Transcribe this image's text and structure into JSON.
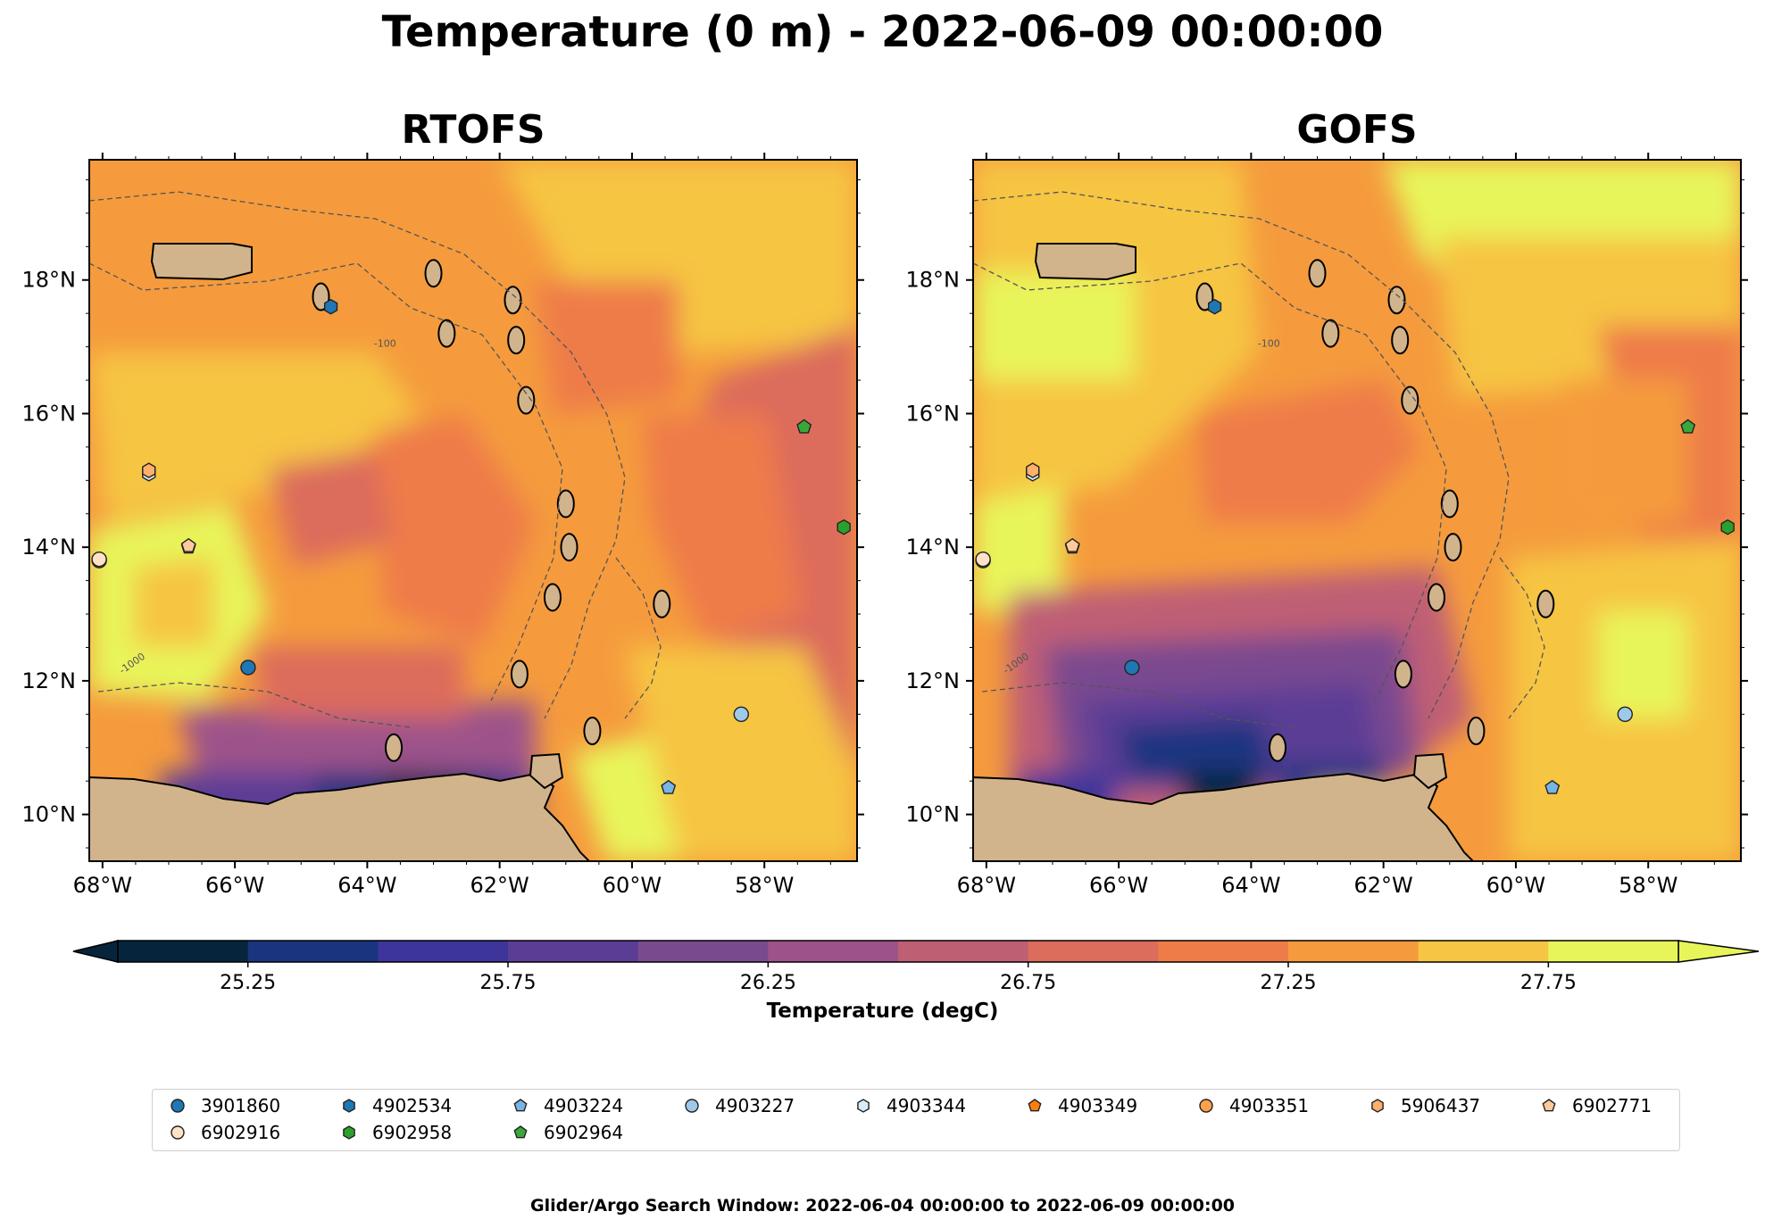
{
  "title": "Temperature (0 m) - 2022-06-09 00:00:00",
  "panels": [
    {
      "title": "RTOFS",
      "variant": "rtofs"
    },
    {
      "title": "GOFS",
      "variant": "gofs"
    }
  ],
  "map": {
    "lon_range": [
      -68.2,
      -56.6
    ],
    "lat_range": [
      9.3,
      19.8
    ],
    "lon_ticks": [
      -68,
      -66,
      -64,
      -62,
      -60,
      -58
    ],
    "lon_tick_labels": [
      "68°W",
      "66°W",
      "64°W",
      "62°W",
      "60°W",
      "58°W"
    ],
    "lat_ticks": [
      10,
      12,
      14,
      16,
      18
    ],
    "lat_tick_labels": [
      "10°N",
      "12°N",
      "14°N",
      "16°N",
      "18°N"
    ],
    "contour_labels": [
      "-1000",
      "-100"
    ]
  },
  "colorbar": {
    "label": "Temperature (degC)",
    "range": [
      25.0,
      28.0
    ],
    "levels": 12,
    "ticks": [
      "25.25",
      "25.75",
      "26.25",
      "26.75",
      "27.25",
      "27.75"
    ],
    "colors": [
      "#06253d",
      "#1a3480",
      "#3d359a",
      "#5b3d96",
      "#7a4a8f",
      "#9d528a",
      "#bf5f74",
      "#dc6c5b",
      "#ee7c48",
      "#f59b3d",
      "#f6c543",
      "#e8f55a"
    ]
  },
  "legend": {
    "items": [
      {
        "id": "3901860",
        "color": "#1f77b4",
        "marker": "circle"
      },
      {
        "id": "4902534",
        "color": "#1f77b4",
        "marker": "hexagon"
      },
      {
        "id": "4903224",
        "color": "#78b5e6",
        "marker": "pentagon"
      },
      {
        "id": "4903227",
        "color": "#9ecae9",
        "marker": "circle"
      },
      {
        "id": "4903344",
        "color": "#d7ecfb",
        "marker": "hexagon"
      },
      {
        "id": "4903349",
        "color": "#ff7f0e",
        "marker": "pentagon"
      },
      {
        "id": "4903351",
        "color": "#ffa04a",
        "marker": "circle"
      },
      {
        "id": "5906437",
        "color": "#ffb06b",
        "marker": "hexagon"
      },
      {
        "id": "6902771",
        "color": "#ffc99c",
        "marker": "pentagon"
      },
      {
        "id": "6902916",
        "color": "#ffe2c6",
        "marker": "circle"
      },
      {
        "id": "6902958",
        "color": "#2ca02c",
        "marker": "hexagon"
      },
      {
        "id": "6902964",
        "color": "#39a83b",
        "marker": "pentagon"
      }
    ]
  },
  "floats": [
    {
      "id": "3901860",
      "lon": -65.8,
      "lat": 12.2
    },
    {
      "id": "4902534",
      "lon": -64.55,
      "lat": 17.6
    },
    {
      "id": "4903224",
      "lon": -59.45,
      "lat": 10.4
    },
    {
      "id": "4903227",
      "lon": -58.35,
      "lat": 11.5
    },
    {
      "id": "4903344",
      "lon": -67.3,
      "lat": 15.1
    },
    {
      "id": "4903349",
      "lon": -66.7,
      "lat": 14.0
    },
    {
      "id": "4903351",
      "lon": -68.05,
      "lat": 13.8
    },
    {
      "id": "5906437",
      "lon": -67.3,
      "lat": 15.15
    },
    {
      "id": "6902771",
      "lon": -66.7,
      "lat": 14.02
    },
    {
      "id": "6902916",
      "lon": -68.05,
      "lat": 13.82
    },
    {
      "id": "6902958",
      "lon": -56.8,
      "lat": 14.3
    },
    {
      "id": "6902964",
      "lon": -57.4,
      "lat": 15.8
    }
  ],
  "footer": "Glider/Argo Search Window: 2022-06-04 00:00:00 to 2022-06-09 00:00:00"
}
